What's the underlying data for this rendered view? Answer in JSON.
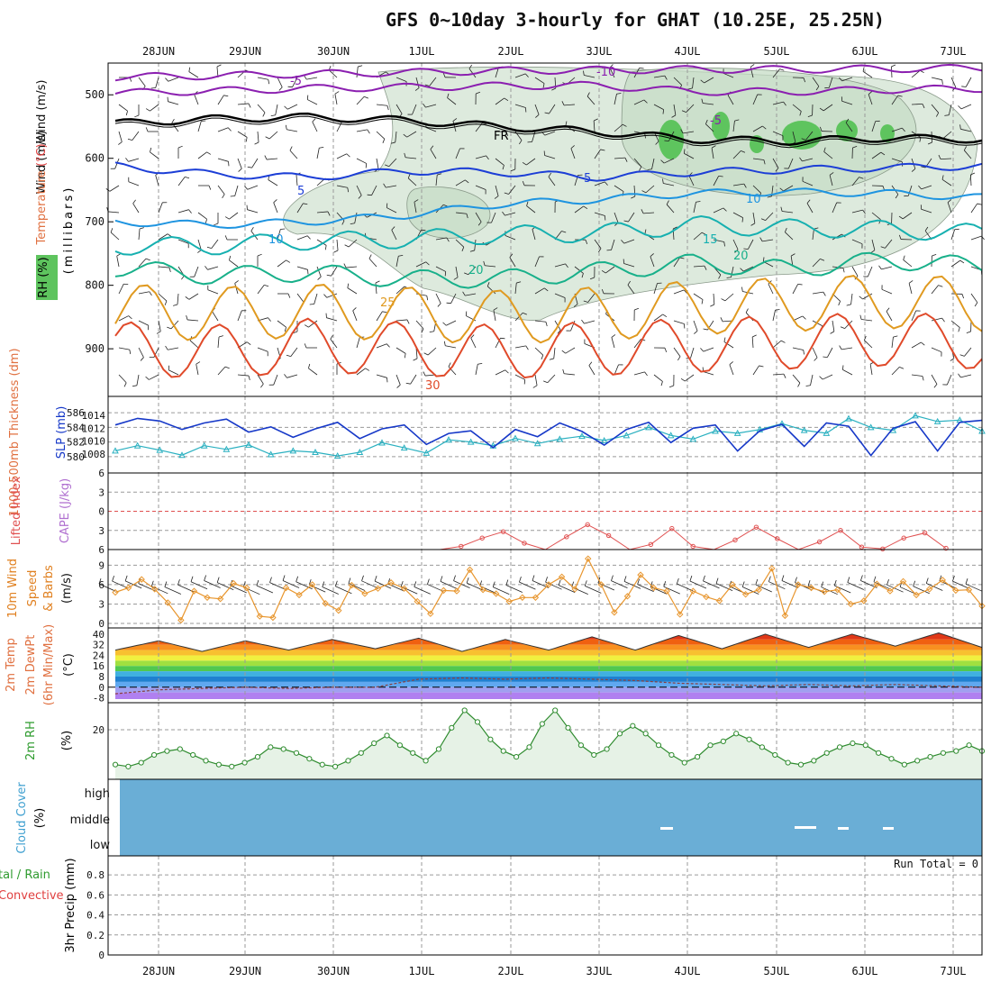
{
  "title": "GFS 0~10day 3-hourly for GHAT (10.25E, 25.25N)",
  "colors": {
    "grid": "#9a9a9a",
    "frame": "#000000",
    "rh_fill": "#c6dcc6",
    "wind_barb": "#222222",
    "thickness": "#2ab0c0",
    "slp": "#1638c8",
    "lifted_index": "#e05050",
    "wind_speed": "#e8962e",
    "rh_line": "#2e8b2e",
    "cloud": "#6aaed6"
  },
  "dates": [
    "28JUN",
    "29JUN",
    "30JUN",
    "1JUL",
    "2JUL",
    "3JUL",
    "4JUL",
    "5JUL",
    "6JUL",
    "7JUL"
  ],
  "chart_data": [
    {
      "type": "line",
      "panel": "upper-air",
      "ylabel_parts": [
        "Wind (m/s)",
        "Temperature (°C)",
        "RH (%)"
      ],
      "yunit": "(millibars)",
      "y_ticks": [
        "500",
        "600",
        "700",
        "800",
        "900"
      ],
      "contour_labels": [
        "-5",
        "-10",
        "-5",
        "FR",
        "5",
        "5",
        "10",
        "10",
        "15",
        "20",
        "20",
        "25",
        "30"
      ],
      "series": [
        {
          "name": "-10",
          "values": [
            472,
            470,
            467,
            465,
            462,
            461,
            460,
            460,
            459,
            458
          ]
        },
        {
          "name": "-5",
          "values": [
            497,
            494,
            490,
            488,
            486,
            485,
            495,
            495,
            492,
            490
          ]
        },
        {
          "name": "FR",
          "values": [
            545,
            538,
            535,
            540,
            550,
            558,
            570,
            573,
            568,
            570
          ]
        },
        {
          "name": "5",
          "values": [
            612,
            625,
            630,
            620,
            622,
            630,
            622,
            618,
            615,
            612
          ]
        },
        {
          "name": "10",
          "values": [
            700,
            705,
            700,
            690,
            672,
            665,
            655,
            653,
            655,
            662
          ]
        },
        {
          "name": "15",
          "values": [
            738,
            738,
            730,
            728,
            720,
            718,
            705,
            710,
            712,
            718
          ]
        },
        {
          "name": "20",
          "values": [
            772,
            785,
            780,
            790,
            790,
            778,
            765,
            775,
            760,
            770
          ]
        },
        {
          "name": "25",
          "values": [
            840,
            845,
            840,
            845,
            850,
            845,
            835,
            830,
            825,
            830
          ]
        },
        {
          "name": "30",
          "values": [
            900,
            905,
            895,
            900,
            905,
            900,
            895,
            890,
            885,
            890
          ]
        }
      ]
    },
    {
      "type": "line",
      "panel": "thickness-slp",
      "ylabel_left": "1000-500mb Thickness (dm)",
      "ylabel_right": "SLP (mb)",
      "y_left_ticks": [
        "580",
        "582",
        "584",
        "586"
      ],
      "y_right_ticks": [
        "1008",
        "1010",
        "1012",
        "1014"
      ],
      "series": [
        {
          "name": "Thickness",
          "values": [
            580.8,
            581.5,
            580.9,
            580.2,
            581.5,
            581.0,
            581.6,
            580.3,
            580.8,
            580.6,
            580.1,
            580.6,
            581.9,
            581.2,
            580.5,
            582.3,
            582.0,
            581.5,
            582.5,
            581.8,
            582.4,
            582.8,
            582.2,
            582.9,
            584.0,
            582.9,
            582.4,
            583.5,
            583.2,
            583.7,
            584.5,
            583.6,
            583.2,
            585.2,
            584.0,
            583.6,
            585.6,
            584.8,
            585.0,
            583.5
          ]
        },
        {
          "name": "SLP",
          "values": [
            1012.5,
            1013.5,
            1013.1,
            1011.8,
            1012.8,
            1013.4,
            1011.4,
            1012.2,
            1010.6,
            1011.9,
            1012.9,
            1010.4,
            1011.9,
            1012.5,
            1009.5,
            1011.2,
            1011.6,
            1009.0,
            1011.8,
            1010.7,
            1012.8,
            1011.5,
            1009.4,
            1011.8,
            1012.9,
            1009.8,
            1012.0,
            1012.5,
            1008.5,
            1011.6,
            1012.6,
            1009.2,
            1012.8,
            1012.3,
            1007.8,
            1012.0,
            1013.0,
            1008.5,
            1012.9,
            1013.2
          ]
        }
      ]
    },
    {
      "type": "line",
      "panel": "lifted-cape",
      "ylabel": "Lifted Index",
      "ylabel2": "CAPE (J/kg)",
      "y_ticks": [
        "6",
        "3",
        "0",
        "3",
        "6"
      ],
      "series": [
        {
          "name": "Lifted Index",
          "values": [
            6.2,
            6.0,
            5.5,
            4.2,
            3.2,
            5.0,
            6.2,
            4.0,
            2.1,
            3.8,
            6.1,
            5.2,
            2.7,
            5.5,
            6.0,
            4.5,
            2.5,
            4.3,
            6.0,
            4.8,
            3.0,
            5.6,
            5.9,
            4.2,
            3.4,
            5.8
          ]
        }
      ]
    },
    {
      "type": "line",
      "panel": "10m-wind",
      "ylabel": "10m Wind Speed & Barbs (m/s)",
      "y_ticks": [
        "0",
        "3",
        "6",
        "9"
      ],
      "series": [
        {
          "name": "Speed",
          "values": [
            4.8,
            5.5,
            6.8,
            5.3,
            3.2,
            0.5,
            5.0,
            4.0,
            3.8,
            6.2,
            5.5,
            1.1,
            0.9,
            5.5,
            4.4,
            6.0,
            3.1,
            2.0,
            5.9,
            4.6,
            5.4,
            6.3,
            5.4,
            3.4,
            1.5,
            5.1,
            5.0,
            8.3,
            5.2,
            4.6,
            3.4,
            4.0,
            4.0,
            6.0,
            7.2,
            5.3,
            10.0,
            6.0,
            1.7,
            4.2,
            7.5,
            5.5,
            5.0,
            1.4,
            5.0,
            4.1,
            3.5,
            6.0,
            4.5,
            5.2,
            8.5,
            1.2,
            6.0,
            5.5,
            4.9,
            5.2,
            3.0,
            3.5,
            6.1,
            5.0,
            6.5,
            4.4,
            5.3,
            6.7,
            5.1,
            5.2,
            2.7
          ]
        }
      ]
    },
    {
      "type": "area",
      "panel": "2m-temp",
      "ylabel_parts": [
        "2m Temp",
        "2m DewPt",
        "(6hr Min/Max)",
        "(°C)"
      ],
      "y_ticks": [
        "40",
        "32",
        "24",
        "16",
        "8",
        "0",
        "-8"
      ],
      "series": [
        {
          "name": "2m Temp",
          "values": [
            28,
            35,
            27,
            35,
            28,
            36,
            29,
            37,
            27,
            36,
            28,
            38,
            28,
            39,
            29,
            40,
            30,
            40,
            31,
            41,
            30
          ]
        },
        {
          "name": "2m DewPt",
          "values": [
            -5,
            -2,
            -1,
            0,
            -1,
            0,
            0,
            6,
            7,
            6,
            7,
            6,
            5,
            3,
            2,
            1,
            2,
            1,
            2,
            1,
            0
          ]
        }
      ]
    },
    {
      "type": "line",
      "panel": "2m-rh",
      "ylabel": "2m RH",
      "yunit": "(%)",
      "y_ticks": [
        "20"
      ],
      "series": [
        {
          "name": "2m RH",
          "values": [
            2,
            1,
            3,
            7,
            9,
            10,
            7,
            4,
            2,
            1,
            3,
            6,
            11,
            10,
            8,
            5,
            2,
            1,
            4,
            8,
            13,
            17,
            12,
            8,
            4,
            10,
            21,
            30,
            24,
            15,
            9,
            6,
            11,
            23,
            30,
            21,
            12,
            7,
            10,
            18,
            22,
            18,
            12,
            7,
            3,
            6,
            12,
            14,
            18,
            15,
            11,
            7,
            3,
            2,
            4,
            8,
            11,
            13,
            12,
            8,
            5,
            2,
            4,
            6,
            8,
            9,
            12,
            9
          ]
        }
      ]
    },
    {
      "type": "heatmap",
      "panel": "cloud-cover",
      "ylabel": "Cloud Cover",
      "yunit": "(%)",
      "levels": [
        "high",
        "middle",
        "low"
      ]
    },
    {
      "type": "bar",
      "panel": "precip",
      "ylabel": "3hr Precip (mm)",
      "ylabel_left": "Total / Rain",
      "ylabel_left2": "Convective",
      "y_ticks": [
        "0",
        "0.2",
        "0.4",
        "0.6",
        "0.8"
      ],
      "run_total": "Run Total = 0",
      "values": []
    }
  ]
}
